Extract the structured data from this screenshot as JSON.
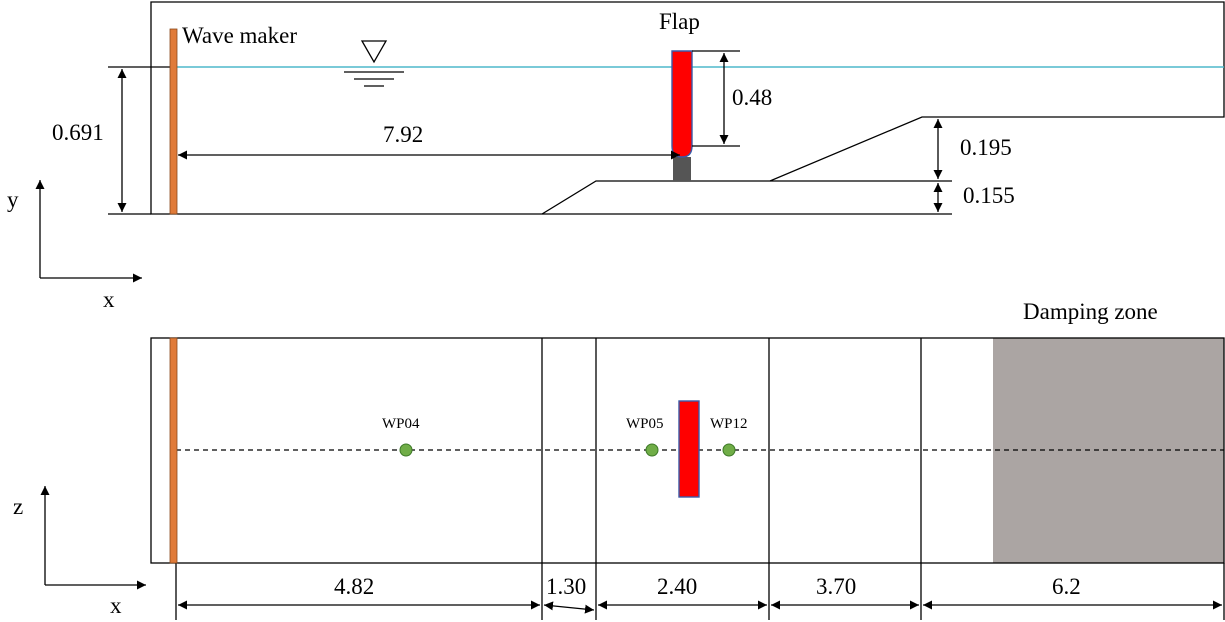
{
  "side_view": {
    "wave_maker_label": "Wave maker",
    "flap_label": "Flap",
    "water_depth": "0.691",
    "flap_distance": "7.92",
    "flap_height": "0.48",
    "ramp_rise": "0.195",
    "step_height": "0.155",
    "axis_y": "y",
    "axis_x": "x"
  },
  "top_view": {
    "damping_label": "Damping zone",
    "probes": [
      "WP04",
      "WP05",
      "WP12"
    ],
    "segments": [
      "4.82",
      "1.30",
      "2.40",
      "3.70",
      "6.2"
    ],
    "axis_z": "z",
    "axis_x": "x"
  },
  "colors": {
    "wave_maker": "#e07b39",
    "flap": "#ff0000",
    "flap_outline": "#3a5aa8",
    "water_line": "#4fb8cc",
    "flap_base": "#555555",
    "damping_zone": "#aba5a3",
    "probe": "#70ad47",
    "probe_outline": "#3e7a28"
  }
}
